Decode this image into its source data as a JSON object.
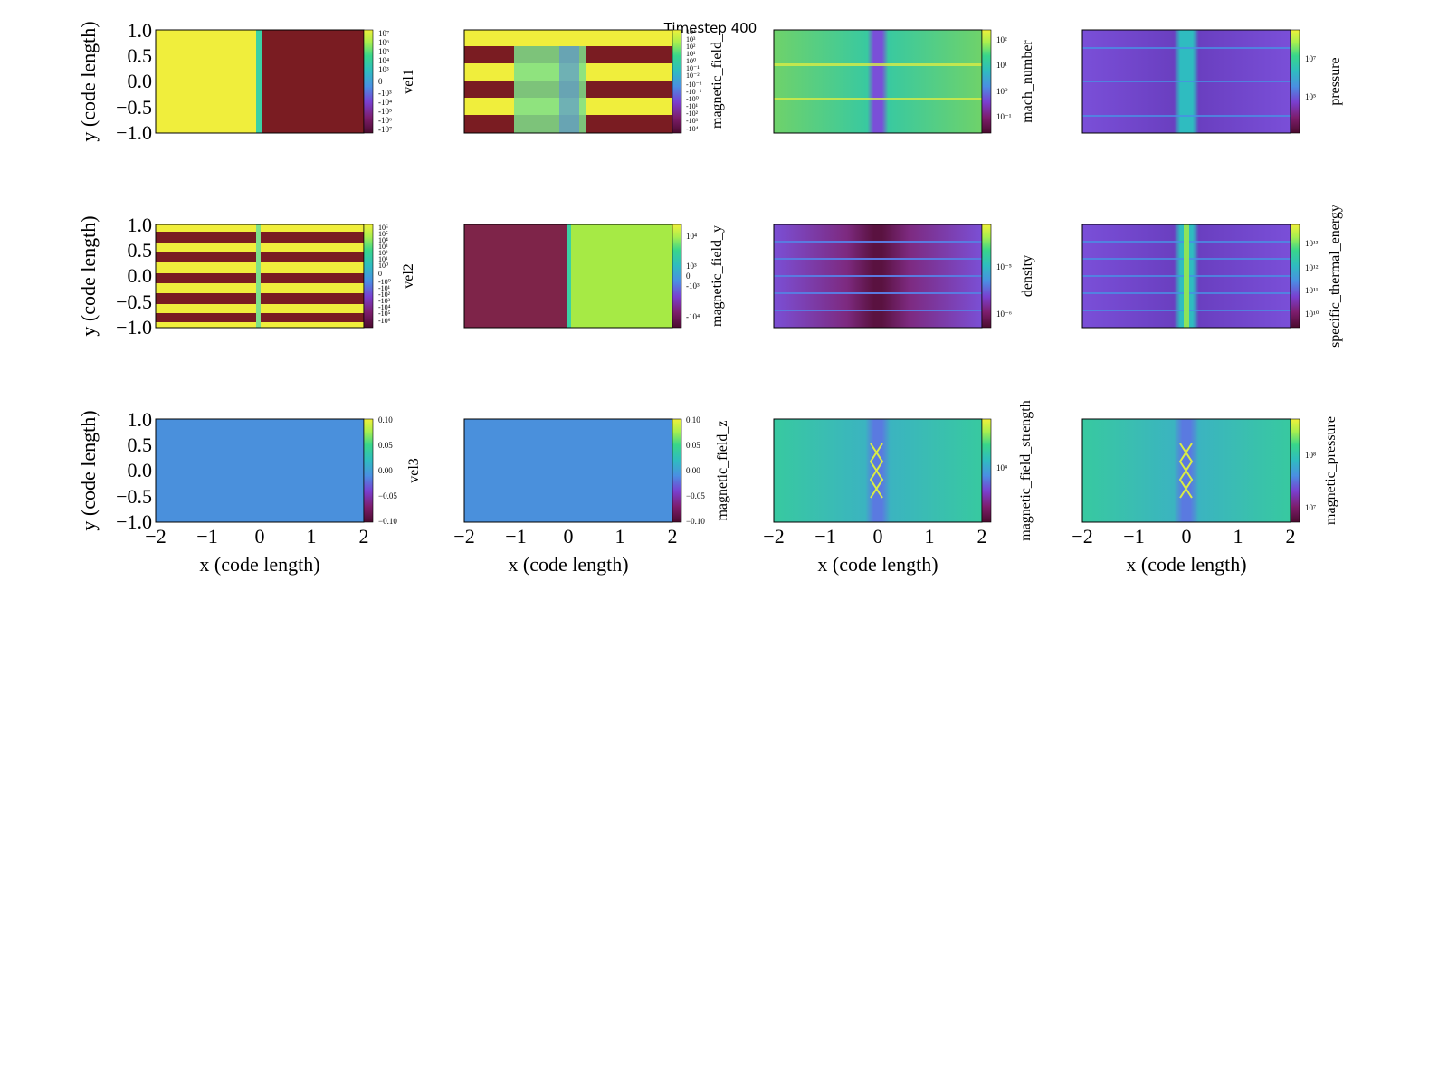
{
  "suptitle": "Timestep 400",
  "axes": {
    "xlabel": "x  (code length)",
    "ylabel": "y  (code length)",
    "x_ticks": [
      "−2",
      "−1",
      "0",
      "1",
      "2"
    ],
    "y_ticks": [
      "1.0",
      "0.5",
      "0.0",
      "−0.5",
      "−1.0"
    ]
  },
  "colormap": [
    "#4b0c2e",
    "#7d1d6d",
    "#7a3fd0",
    "#4a8fe3",
    "#2fbcc0",
    "#39d68a",
    "#a9ef4e",
    "#f0f03a"
  ],
  "chart_data": [
    {
      "type": "heatmap",
      "field": "vel1",
      "xlim": [
        -2,
        2
      ],
      "ylim": [
        -1,
        1
      ],
      "scale": "symlog",
      "colorbar_ticks": [
        "10⁷",
        "10⁶",
        "10⁵",
        "10⁴",
        "10³",
        "0",
        "-10³",
        "-10⁴",
        "-10⁵",
        "-10⁶",
        "-10⁷"
      ],
      "structure": "positive (yellow) for x < 0, negative (dark red) for x > 0, thin transition layer at x = 0"
    },
    {
      "type": "heatmap",
      "field": "magnetic_field_x",
      "colorbar_label_visible": "magnetic_field_",
      "xlim": [
        -2,
        2
      ],
      "ylim": [
        -1,
        1
      ],
      "scale": "symlog",
      "colorbar_ticks": [
        "10⁴",
        "10³",
        "10²",
        "10¹",
        "10⁰",
        "10⁻¹",
        "10⁻²",
        "-10⁻²",
        "-10⁻¹",
        "-10⁰",
        "-10¹",
        "-10²",
        "-10³",
        "-10⁴"
      ],
      "structure": "alternating horizontal bands of positive and negative field, pinched near x = 0"
    },
    {
      "type": "heatmap",
      "field": "mach_number",
      "xlim": [
        -2,
        2
      ],
      "ylim": [
        -1,
        1
      ],
      "scale": "log",
      "colorbar_ticks": [
        "10²",
        "10¹",
        "10⁰",
        "10⁻¹"
      ],
      "structure": "high mach outside, low mach in central column at x = 0"
    },
    {
      "type": "heatmap",
      "field": "pressure",
      "xlim": [
        -2,
        2
      ],
      "ylim": [
        -1,
        1
      ],
      "scale": "log",
      "colorbar_ticks": [
        "10⁷",
        "10⁵"
      ],
      "structure": "high pressure in central column, banded structure"
    },
    {
      "type": "heatmap",
      "field": "vel2",
      "xlim": [
        -2,
        2
      ],
      "ylim": [
        -1,
        1
      ],
      "scale": "symlog",
      "colorbar_ticks": [
        "10⁶",
        "10⁵",
        "10⁴",
        "10³",
        "10²",
        "10¹",
        "10⁰",
        "0",
        "-10⁰",
        "-10¹",
        "-10²",
        "-10³",
        "-10⁴",
        "-10⁵",
        "-10⁶"
      ],
      "structure": "alternating horizontal bands of positive and negative velocity"
    },
    {
      "type": "heatmap",
      "field": "magnetic_field_y",
      "xlim": [
        -2,
        2
      ],
      "ylim": [
        -1,
        1
      ],
      "scale": "symlog",
      "colorbar_ticks": [
        "10⁴",
        "10³",
        "0",
        "-10³",
        "-10⁴"
      ],
      "structure": "negative for x < 0, positive for x > 0"
    },
    {
      "type": "heatmap",
      "field": "density",
      "xlim": [
        -2,
        2
      ],
      "ylim": [
        -1,
        1
      ],
      "scale": "log",
      "colorbar_ticks": [
        "10⁻⁵",
        "10⁻⁶"
      ],
      "structure": "thin horizontal density sheets, low density around x = 0"
    },
    {
      "type": "heatmap",
      "field": "specific_thermal_energy",
      "xlim": [
        -2,
        2
      ],
      "ylim": [
        -1,
        1
      ],
      "scale": "log",
      "colorbar_ticks": [
        "10¹³",
        "10¹²",
        "10¹¹",
        "10¹⁰"
      ],
      "structure": "hot central column at x = 0, banded structure"
    },
    {
      "type": "heatmap",
      "field": "vel3",
      "xlim": [
        -2,
        2
      ],
      "ylim": [
        -1,
        1
      ],
      "scale": "linear",
      "colorbar_ticks": [
        "0.10",
        "0.05",
        "0.00",
        "−0.05",
        "−0.10"
      ],
      "structure": "uniform value 0"
    },
    {
      "type": "heatmap",
      "field": "magnetic_field_z",
      "xlim": [
        -2,
        2
      ],
      "ylim": [
        -1,
        1
      ],
      "scale": "linear",
      "colorbar_ticks": [
        "0.10",
        "0.05",
        "0.00",
        "−0.05",
        "−0.10"
      ],
      "structure": "uniform value 0"
    },
    {
      "type": "heatmap",
      "field": "magnetic_field_strength",
      "xlim": [
        -2,
        2
      ],
      "ylim": [
        -1,
        1
      ],
      "scale": "log",
      "colorbar_ticks": [
        "10⁴"
      ],
      "structure": "mostly uniform with X-shaped features at x = 0"
    },
    {
      "type": "heatmap",
      "field": "magnetic_pressure",
      "xlim": [
        -2,
        2
      ],
      "ylim": [
        -1,
        1
      ],
      "scale": "log",
      "colorbar_ticks": [
        "10⁸",
        "10⁷"
      ],
      "structure": "mostly uniform with X-shaped features at x = 0"
    }
  ]
}
